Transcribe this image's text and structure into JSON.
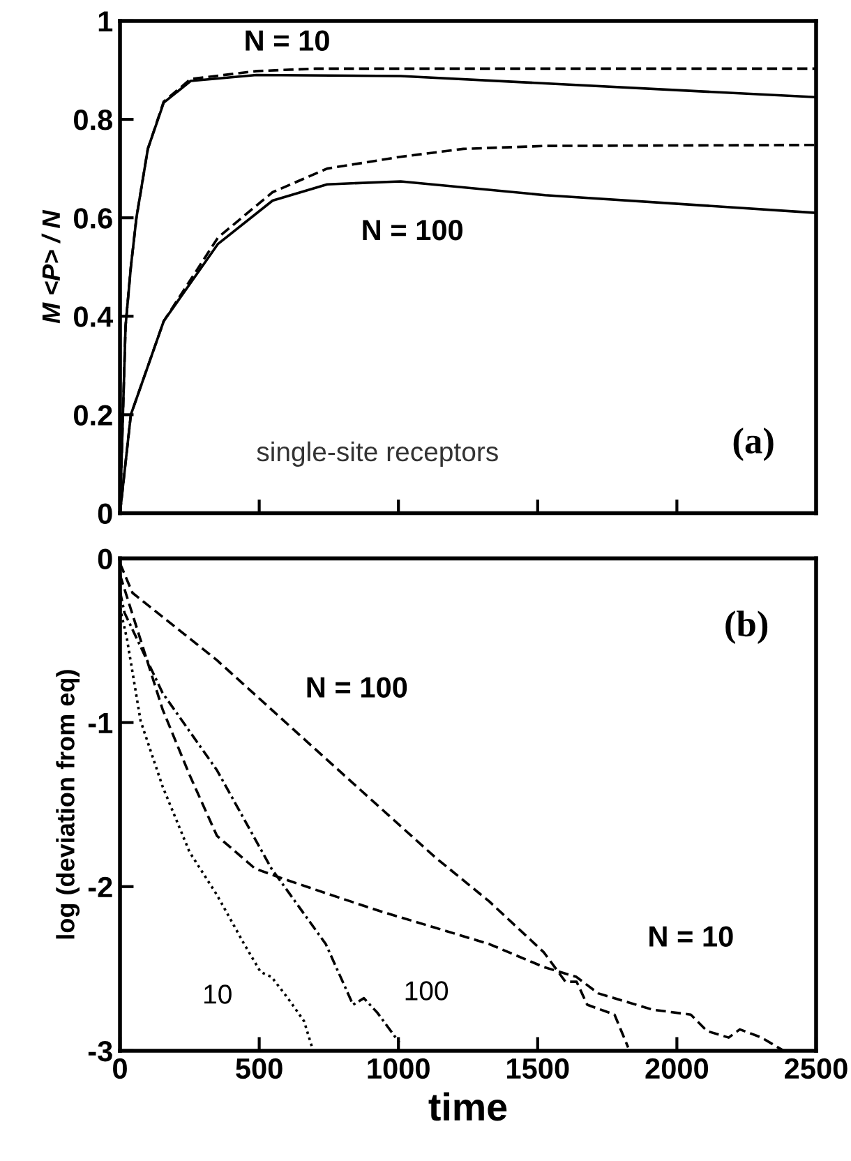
{
  "chart_data": [
    {
      "type": "line",
      "ylabel": "M <P> / N",
      "xlim": [
        0,
        2500
      ],
      "xticks": [
        {
          "value": 0,
          "label": null
        },
        {
          "value": 500,
          "label": null
        },
        {
          "value": 1000,
          "label": null
        },
        {
          "value": 1500,
          "label": null
        },
        {
          "value": 2000,
          "label": null
        },
        {
          "value": 2500,
          "label": null
        }
      ],
      "ylim": [
        0,
        1
      ],
      "yticks": [
        0,
        0.2,
        0.4,
        0.6,
        0.8,
        1
      ],
      "tick_labels": "y",
      "grid": false,
      "legend": false,
      "series": [
        {
          "color": "#000000",
          "line_style": "solid",
          "x": [
            0,
            20,
            39,
            59,
            100,
            157,
            254,
            490,
            1008,
            1527,
            2500
          ],
          "values": [
            0,
            0.38,
            0.5,
            0.6,
            0.74,
            0.834,
            0.878,
            0.89,
            0.888,
            0.873,
            0.845
          ]
        },
        {
          "color": "#000000",
          "line_style": "dashed",
          "x": [
            0,
            20,
            39,
            59,
            100,
            157,
            254,
            490,
            700,
            1000,
            2500
          ],
          "values": [
            0,
            0.38,
            0.5,
            0.6,
            0.74,
            0.836,
            0.882,
            0.898,
            0.903,
            0.903,
            0.903
          ]
        },
        {
          "color": "#000000",
          "line_style": "solid",
          "x": [
            0,
            39,
            157,
            352,
            548,
            744,
            1008,
            1527,
            2500
          ],
          "values": [
            0,
            0.2,
            0.39,
            0.547,
            0.635,
            0.668,
            0.674,
            0.646,
            0.61
          ]
        },
        {
          "color": "#000000",
          "line_style": "dashed",
          "x": [
            0,
            39,
            157,
            352,
            548,
            744,
            1008,
            1233,
            1527,
            2500
          ],
          "values": [
            0,
            0.2,
            0.39,
            0.56,
            0.652,
            0.7,
            0.724,
            0.74,
            0.746,
            0.748
          ]
        }
      ],
      "annotations": [
        "N = 10",
        "N = 100",
        "single-site receptors",
        "(a)"
      ]
    },
    {
      "type": "line",
      "xlabel": "time",
      "ylabel": "log (deviation from eq)",
      "xlim": [
        0,
        2500
      ],
      "xticks": [
        0,
        500,
        1000,
        1500,
        2000,
        2500
      ],
      "ylim": [
        -3,
        0
      ],
      "yticks": [
        -3,
        -2,
        -1,
        0
      ],
      "grid": false,
      "legend": false,
      "series": [
        {
          "color": "#000000",
          "line_style": "dashed",
          "x": [
            0,
            45,
            348,
            739,
            1131,
            1326,
            1522,
            1600,
            1640,
            1678,
            1776,
            1825
          ],
          "values": [
            -0.03,
            -0.21,
            -0.62,
            -1.22,
            -1.82,
            -2.09,
            -2.4,
            -2.58,
            -2.58,
            -2.72,
            -2.78,
            -2.98
          ]
        },
        {
          "color": "#000000",
          "line_style": "dashed",
          "x": [
            0,
            153,
            250,
            348,
            485,
            583,
            739,
            935,
            1131,
            1326,
            1522,
            1639,
            1717,
            1913,
            2050,
            2108,
            2186,
            2226,
            2304,
            2383
          ],
          "values": [
            -0.1,
            -0.92,
            -1.32,
            -1.69,
            -1.89,
            -1.95,
            -2.04,
            -2.15,
            -2.25,
            -2.35,
            -2.49,
            -2.55,
            -2.65,
            -2.75,
            -2.78,
            -2.88,
            -2.92,
            -2.87,
            -2.92,
            -3.0
          ]
        },
        {
          "color": "#000000",
          "line_style": "dotted",
          "x": [
            0,
            25,
            74,
            153,
            250,
            348,
            446,
            505,
            544,
            603,
            661,
            690
          ],
          "values": [
            -0.3,
            -0.49,
            -0.99,
            -1.39,
            -1.79,
            -2.05,
            -2.35,
            -2.52,
            -2.55,
            -2.68,
            -2.82,
            -2.98
          ]
        },
        {
          "color": "#000000",
          "line_style": "dashdot",
          "x": [
            0,
            16,
            153,
            348,
            544,
            739,
            837,
            876,
            925,
            1003
          ],
          "values": [
            -0.2,
            -0.33,
            -0.82,
            -1.29,
            -1.89,
            -2.35,
            -2.72,
            -2.68,
            -2.77,
            -2.95
          ]
        }
      ],
      "annotations": [
        "N = 100",
        "N = 10",
        "10",
        "100",
        "(b)"
      ]
    }
  ]
}
